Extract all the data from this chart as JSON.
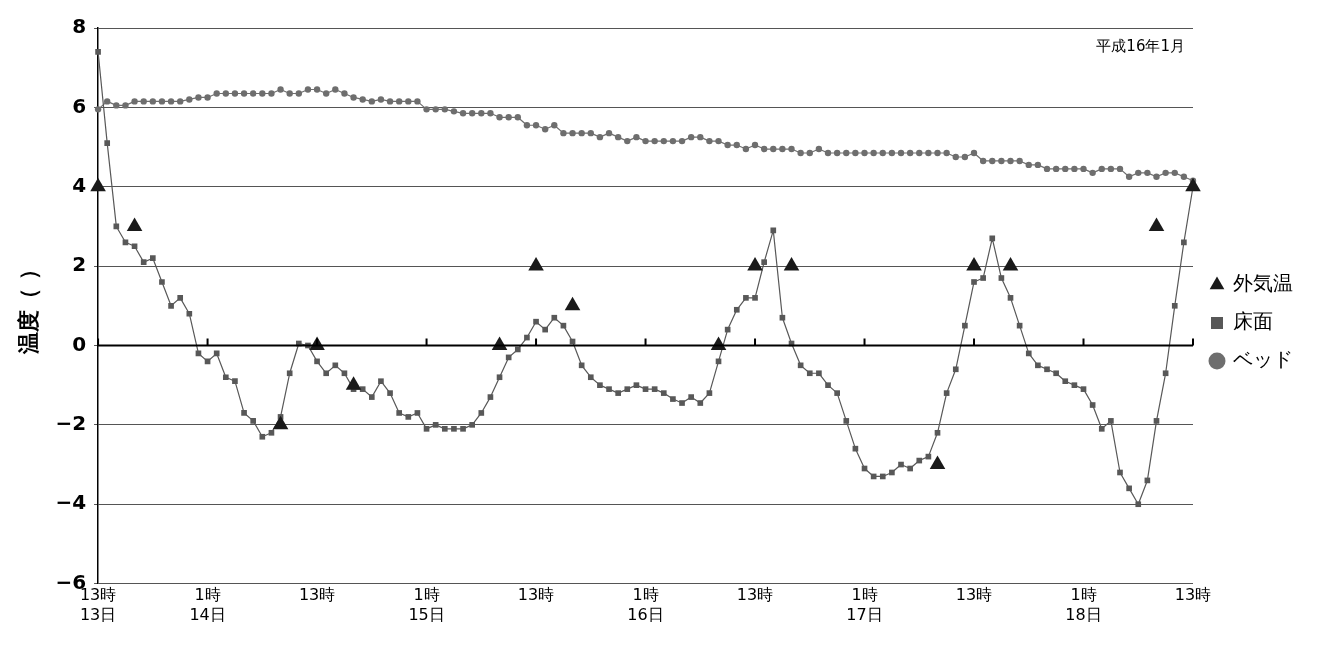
{
  "chart_data": {
    "type": "line",
    "annotations": [
      "平成16年1月"
    ],
    "ylabel": "温度（ ）",
    "categories": [
      "13時\n13日",
      null,
      null,
      null,
      null,
      null,
      null,
      null,
      null,
      null,
      null,
      null,
      "1時\n14日",
      null,
      null,
      null,
      null,
      null,
      null,
      null,
      null,
      null,
      null,
      null,
      "13時",
      null,
      null,
      null,
      null,
      null,
      null,
      null,
      null,
      null,
      null,
      null,
      "1時\n15日",
      null,
      null,
      null,
      null,
      null,
      null,
      null,
      null,
      null,
      null,
      null,
      "13時",
      null,
      null,
      null,
      null,
      null,
      null,
      null,
      null,
      null,
      null,
      null,
      "1時\n16日",
      null,
      null,
      null,
      null,
      null,
      null,
      null,
      null,
      null,
      null,
      null,
      "13時",
      null,
      null,
      null,
      null,
      null,
      null,
      null,
      null,
      null,
      null,
      null,
      "1時\n17日",
      null,
      null,
      null,
      null,
      null,
      null,
      null,
      null,
      null,
      null,
      null,
      "13時",
      null,
      null,
      null,
      null,
      null,
      null,
      null,
      null,
      null,
      null,
      null,
      "1時\n18日",
      null,
      null,
      null,
      null,
      null,
      null,
      null,
      null,
      null,
      null,
      null,
      "13時"
    ],
    "ylim": [
      -6,
      8
    ],
    "yticks": [
      {
        "value": -6,
        "label": "−6"
      },
      {
        "value": -4,
        "label": "−4"
      },
      {
        "value": -2,
        "label": "−2"
      },
      0,
      2,
      4,
      6,
      8
    ],
    "grid": "y",
    "legend": "right",
    "ref_lines": [
      {
        "axis": "y",
        "value": 0,
        "color": "#000000"
      }
    ],
    "series": [
      {
        "name": "外気温",
        "type": "scatter",
        "marker": "triangle",
        "color": "#1a1a1a",
        "values": [
          4,
          null,
          null,
          null,
          3,
          null,
          null,
          null,
          null,
          null,
          null,
          null,
          null,
          null,
          null,
          null,
          null,
          null,
          null,
          null,
          -2,
          null,
          null,
          null,
          0,
          null,
          null,
          null,
          -1,
          null,
          null,
          null,
          null,
          null,
          null,
          null,
          null,
          null,
          null,
          null,
          null,
          null,
          null,
          null,
          0,
          null,
          null,
          null,
          2,
          null,
          null,
          null,
          1,
          null,
          null,
          null,
          null,
          null,
          null,
          null,
          null,
          null,
          null,
          null,
          null,
          null,
          null,
          null,
          0,
          null,
          null,
          null,
          2,
          null,
          null,
          null,
          2,
          null,
          null,
          null,
          null,
          null,
          null,
          null,
          null,
          null,
          null,
          null,
          null,
          null,
          null,
          null,
          -3,
          null,
          null,
          null,
          2,
          null,
          null,
          null,
          2,
          null,
          null,
          null,
          null,
          null,
          null,
          null,
          null,
          null,
          null,
          null,
          null,
          null,
          null,
          null,
          3,
          null,
          null,
          null,
          4
        ]
      },
      {
        "name": "床面",
        "marker": "square",
        "line_style": "solid",
        "color": "#585858",
        "values": [
          7.4,
          5.1,
          3.0,
          2.6,
          2.5,
          2.1,
          2.2,
          1.6,
          1.0,
          1.2,
          0.8,
          -0.2,
          -0.4,
          -0.2,
          -0.8,
          -0.9,
          -1.7,
          -1.9,
          -2.3,
          -2.2,
          -1.8,
          -0.7,
          0.05,
          0.0,
          -0.4,
          -0.7,
          -0.5,
          -0.7,
          -1.1,
          -1.1,
          -1.3,
          -0.9,
          -1.2,
          -1.7,
          -1.8,
          -1.7,
          -2.1,
          -2.0,
          -2.1,
          -2.1,
          -2.1,
          -2.0,
          -1.7,
          -1.3,
          -0.8,
          -0.3,
          -0.1,
          0.2,
          0.6,
          0.4,
          0.7,
          0.5,
          0.1,
          -0.5,
          -0.8,
          -1.0,
          -1.1,
          -1.2,
          -1.1,
          -1.0,
          -1.1,
          -1.1,
          -1.2,
          -1.35,
          -1.45,
          -1.3,
          -1.45,
          -1.2,
          -0.4,
          0.4,
          0.9,
          1.2,
          1.2,
          2.1,
          2.9,
          0.7,
          0.05,
          -0.5,
          -0.7,
          -0.7,
          -1.0,
          -1.2,
          -1.9,
          -2.6,
          -3.1,
          -3.3,
          -3.3,
          -3.2,
          -3.0,
          -3.1,
          -2.9,
          -2.8,
          -2.2,
          -1.2,
          -0.6,
          0.5,
          1.6,
          1.7,
          2.7,
          1.7,
          1.2,
          0.5,
          -0.2,
          -0.5,
          -0.6,
          -0.7,
          -0.9,
          -1.0,
          -1.1,
          -1.5,
          -2.1,
          -1.9,
          -3.2,
          -3.6,
          -4.0,
          -3.4,
          -1.9,
          -0.7,
          1.0,
          2.6,
          4.0
        ]
      },
      {
        "name": "ベッド",
        "marker": "circle",
        "line_style": "solid",
        "color": "#6e6e6e",
        "values": [
          5.95,
          6.15,
          6.05,
          6.05,
          6.15,
          6.15,
          6.15,
          6.15,
          6.15,
          6.15,
          6.2,
          6.25,
          6.25,
          6.35,
          6.35,
          6.35,
          6.35,
          6.35,
          6.35,
          6.35,
          6.45,
          6.35,
          6.35,
          6.45,
          6.45,
          6.35,
          6.45,
          6.35,
          6.25,
          6.2,
          6.15,
          6.2,
          6.15,
          6.15,
          6.15,
          6.15,
          5.95,
          5.95,
          5.95,
          5.9,
          5.85,
          5.85,
          5.85,
          5.85,
          5.75,
          5.75,
          5.75,
          5.55,
          5.55,
          5.45,
          5.55,
          5.35,
          5.35,
          5.35,
          5.35,
          5.25,
          5.35,
          5.25,
          5.15,
          5.25,
          5.15,
          5.15,
          5.15,
          5.15,
          5.15,
          5.25,
          5.25,
          5.15,
          5.15,
          5.05,
          5.05,
          4.95,
          5.05,
          4.95,
          4.95,
          4.95,
          4.95,
          4.85,
          4.85,
          4.95,
          4.85,
          4.85,
          4.85,
          4.85,
          4.85,
          4.85,
          4.85,
          4.85,
          4.85,
          4.85,
          4.85,
          4.85,
          4.85,
          4.85,
          4.75,
          4.75,
          4.85,
          4.65,
          4.65,
          4.65,
          4.65,
          4.65,
          4.55,
          4.55,
          4.45,
          4.45,
          4.45,
          4.45,
          4.45,
          4.35,
          4.45,
          4.45,
          4.45,
          4.25,
          4.35,
          4.35,
          4.25,
          4.35,
          4.35,
          4.25,
          4.15
        ]
      }
    ]
  }
}
